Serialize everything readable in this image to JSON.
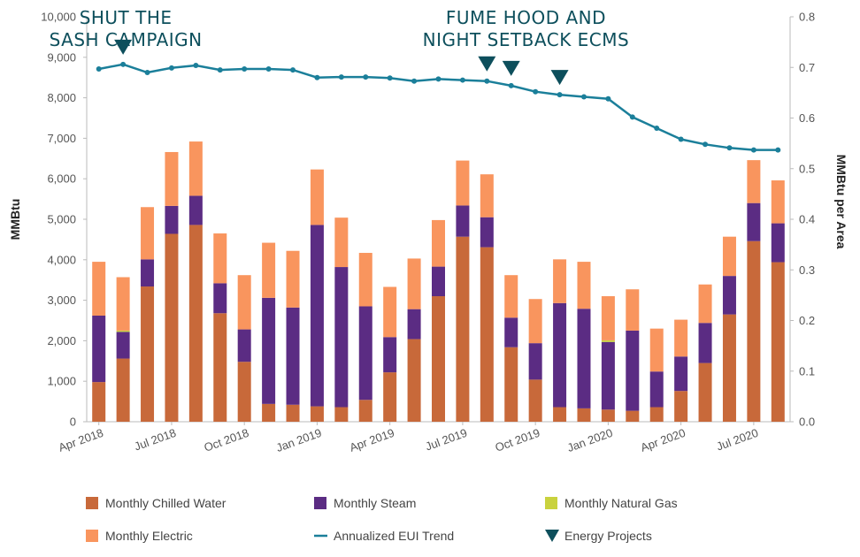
{
  "chart_data": {
    "type": "bar",
    "stacked": true,
    "categories": [
      "Apr 2018",
      "May 2018",
      "Jun 2018",
      "Jul 2018",
      "Aug 2018",
      "Sep 2018",
      "Oct 2018",
      "Nov 2018",
      "Dec 2018",
      "Jan 2019",
      "Feb 2019",
      "Mar 2019",
      "Apr 2019",
      "May 2019",
      "Jun 2019",
      "Jul 2019",
      "Aug 2019",
      "Sep 2019",
      "Oct 2019",
      "Nov 2019",
      "Dec 2019",
      "Jan 2020",
      "Feb 2020",
      "Mar 2020",
      "Apr 2020",
      "May 2020",
      "Jun 2020",
      "Jul 2020",
      "Aug 2020"
    ],
    "x_tick_labels": [
      "Apr 2018",
      "Jul 2018",
      "Oct 2018",
      "Jan 2019",
      "Apr 2019",
      "Jul 2019",
      "Oct 2019",
      "Jan 2020",
      "Apr 2020",
      "Jul 2020"
    ],
    "series": [
      {
        "name": "Monthly Chilled Water",
        "color": "#c8693a",
        "values": [
          980,
          1560,
          3340,
          4640,
          4860,
          2680,
          1480,
          440,
          420,
          380,
          360,
          540,
          1220,
          2040,
          3100,
          4570,
          4310,
          1840,
          1040,
          360,
          330,
          300,
          270,
          360,
          760,
          1450,
          2650,
          4460,
          3940
        ]
      },
      {
        "name": "Monthly Steam",
        "color": "#5b2c83",
        "values": [
          1640,
          660,
          670,
          690,
          720,
          740,
          800,
          2620,
          2400,
          4480,
          3460,
          2310,
          870,
          740,
          730,
          770,
          740,
          730,
          900,
          2570,
          2460,
          1670,
          1980,
          880,
          850,
          990,
          950,
          940,
          960
        ]
      },
      {
        "name": "Monthly Natural Gas",
        "color": "#c9d23e",
        "values": [
          0,
          30,
          0,
          0,
          0,
          0,
          0,
          0,
          0,
          0,
          0,
          0,
          0,
          0,
          0,
          0,
          0,
          0,
          0,
          0,
          0,
          40,
          0,
          0,
          0,
          0,
          0,
          0,
          0
        ]
      },
      {
        "name": "Monthly Electric",
        "color": "#f9955e",
        "values": [
          1330,
          1320,
          1290,
          1330,
          1340,
          1230,
          1340,
          1360,
          1400,
          1370,
          1220,
          1320,
          1240,
          1250,
          1150,
          1110,
          1060,
          1050,
          1090,
          1080,
          1160,
          1090,
          1020,
          1060,
          910,
          950,
          970,
          1060,
          1060
        ]
      }
    ],
    "trend": {
      "name": "Annualized EUI Trend",
      "color": "#1b7f9a",
      "values": [
        0.697,
        0.706,
        0.69,
        0.699,
        0.704,
        0.695,
        0.697,
        0.697,
        0.695,
        0.68,
        0.681,
        0.681,
        0.679,
        0.673,
        0.677,
        0.675,
        0.673,
        0.664,
        0.652,
        0.646,
        0.642,
        0.638,
        0.602,
        0.58,
        0.558,
        0.548,
        0.541,
        0.537,
        0.537
      ]
    },
    "energy_projects": {
      "name": "Energy Projects",
      "color": "#0d4f5c",
      "at_index": [
        1,
        16,
        17,
        19
      ]
    },
    "annotations": [
      {
        "lines": [
          "SHUT THE",
          "SASH CAMPAIGN"
        ],
        "index": 1
      },
      {
        "lines": [
          "FUME HOOD AND",
          "NIGHT SETBACK ECMS"
        ],
        "index": 17.5
      }
    ],
    "ylabel": "MMBtu",
    "ylim": [
      0,
      10000
    ],
    "yticks": [
      "0",
      "1,000",
      "2,000",
      "3,000",
      "4,000",
      "5,000",
      "6,000",
      "7,000",
      "8,000",
      "9,000",
      "10,000"
    ],
    "y2label": "MMBtu per Area",
    "y2lim": [
      0,
      0.8
    ],
    "y2ticks": [
      "0.0",
      "0.1",
      "0.2",
      "0.3",
      "0.4",
      "0.5",
      "0.6",
      "0.7",
      "0.8"
    ],
    "grid": false,
    "legend_position": "bottom",
    "legend": [
      {
        "label": "Monthly Chilled Water",
        "kind": "box",
        "color": "#c8693a"
      },
      {
        "label": "Monthly Steam",
        "kind": "box",
        "color": "#5b2c83"
      },
      {
        "label": "Monthly Natural Gas",
        "kind": "box",
        "color": "#c9d23e"
      },
      {
        "label": "Monthly Electric",
        "kind": "box",
        "color": "#f9955e"
      },
      {
        "label": "Annualized EUI Trend",
        "kind": "line",
        "color": "#1b7f9a"
      },
      {
        "label": "Energy Projects",
        "kind": "triangle",
        "color": "#0d4f5c"
      }
    ]
  }
}
